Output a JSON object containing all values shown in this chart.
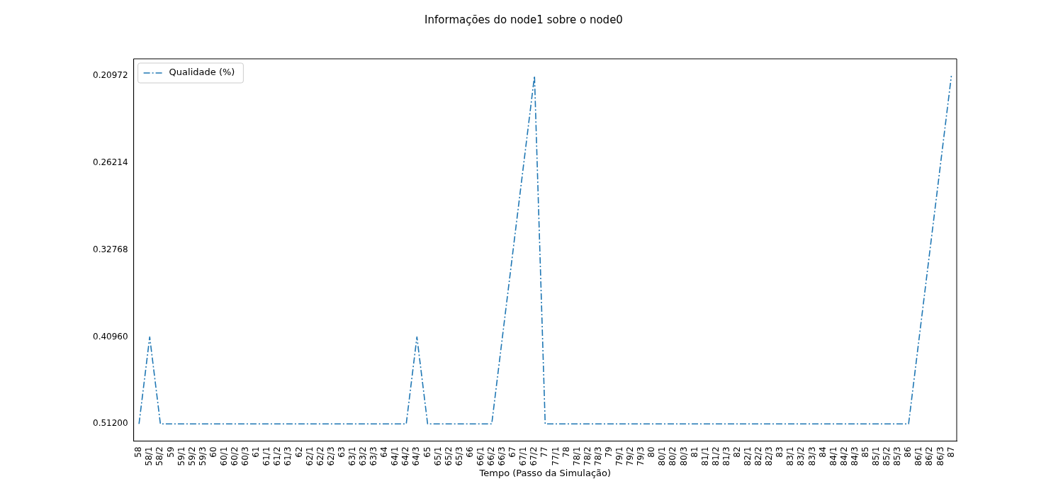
{
  "chart_data": {
    "type": "line",
    "title": "Informações do node1 sobre o node0",
    "xlabel": "Tempo (Passo da Simulação)",
    "categories": [
      "58",
      "58/1",
      "58/2",
      "59",
      "59/1",
      "59/2",
      "59/3",
      "60",
      "60/1",
      "60/2",
      "60/3",
      "61",
      "61/1",
      "61/2",
      "61/3",
      "62",
      "62/1",
      "62/2",
      "62/3",
      "63",
      "63/1",
      "63/2",
      "63/3",
      "64",
      "64/1",
      "64/2",
      "64/3",
      "65",
      "65/1",
      "65/2",
      "65/3",
      "66",
      "66/1",
      "66/2",
      "66/3",
      "67",
      "67/1",
      "67/2",
      "77",
      "77/1",
      "78",
      "78/1",
      "78/2",
      "78/3",
      "79",
      "79/1",
      "79/2",
      "79/3",
      "80",
      "80/1",
      "80/2",
      "80/3",
      "81",
      "81/1",
      "81/2",
      "81/3",
      "82",
      "82/1",
      "82/2",
      "82/3",
      "83",
      "83/1",
      "83/2",
      "83/3",
      "84",
      "84/1",
      "84/2",
      "84/3",
      "85",
      "85/1",
      "85/2",
      "85/3",
      "86",
      "86/1",
      "86/2",
      "86/3",
      "87"
    ],
    "series": [
      {
        "name": "Qualidade (%)",
        "color": "#1f77b4",
        "values": [
          0.512,
          0.4096,
          0.512,
          0.512,
          0.512,
          0.512,
          0.512,
          0.512,
          0.512,
          0.512,
          0.512,
          0.512,
          0.512,
          0.512,
          0.512,
          0.512,
          0.512,
          0.512,
          0.512,
          0.512,
          0.512,
          0.512,
          0.512,
          0.512,
          0.512,
          0.512,
          0.4096,
          0.512,
          0.512,
          0.512,
          0.512,
          0.512,
          0.512,
          0.512,
          0.4096,
          0.32768,
          0.26214,
          0.20972,
          0.512,
          0.512,
          0.512,
          0.512,
          0.512,
          0.512,
          0.512,
          0.512,
          0.512,
          0.512,
          0.512,
          0.512,
          0.512,
          0.512,
          0.512,
          0.512,
          0.512,
          0.512,
          0.512,
          0.512,
          0.512,
          0.512,
          0.512,
          0.512,
          0.512,
          0.512,
          0.512,
          0.512,
          0.512,
          0.512,
          0.512,
          0.512,
          0.512,
          0.512,
          0.512,
          0.4096,
          0.32768,
          0.26214,
          0.20972
        ]
      }
    ],
    "log": "y",
    "ylim": [
      0.535,
      0.2007
    ],
    "yticks": [
      {
        "value": 0.512,
        "label": "0.51200"
      },
      {
        "value": 0.4096,
        "label": "0.40960"
      },
      {
        "value": 0.32768,
        "label": "0.32768"
      },
      {
        "value": 0.26214,
        "label": "0.26214"
      },
      {
        "value": 0.20972,
        "label": "0.20972"
      }
    ],
    "grid": false,
    "legend": "top left",
    "line_style": "dashdot",
    "marker": "none"
  }
}
